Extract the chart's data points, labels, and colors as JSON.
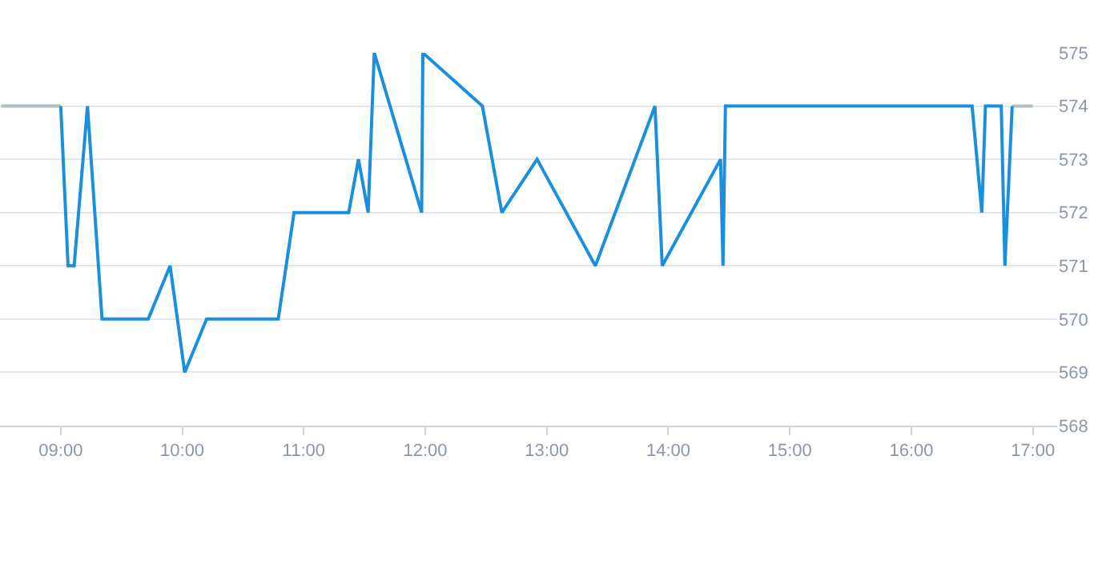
{
  "chart_data": {
    "type": "line",
    "xlim": [
      8.5,
      17.2
    ],
    "ylim": [
      568,
      575
    ],
    "xticks": [
      {
        "value": 9,
        "label": "09:00"
      },
      {
        "value": 10,
        "label": "10:00"
      },
      {
        "value": 11,
        "label": "11:00"
      },
      {
        "value": 12,
        "label": "12:00"
      },
      {
        "value": 13,
        "label": "13:00"
      },
      {
        "value": 14,
        "label": "14:00"
      },
      {
        "value": 15,
        "label": "15:00"
      },
      {
        "value": 16,
        "label": "16:00"
      },
      {
        "value": 17,
        "label": "17:00"
      }
    ],
    "yticks": [
      568,
      569,
      570,
      571,
      572,
      573,
      574,
      575
    ],
    "grid": "y",
    "marker": "none",
    "line_style": "solid",
    "series": [
      {
        "color": "#b0bec5",
        "x": [
          8.51,
          9.0
        ],
        "values": [
          574,
          574
        ]
      },
      {
        "color": "#b0bec5",
        "x": [
          16.83,
          17.0
        ],
        "values": [
          574,
          574
        ]
      },
      {
        "color": "#1a8fdc",
        "x": [
          9.0,
          9.06,
          9.11,
          9.22,
          9.34,
          9.72,
          9.9,
          10.02,
          10.2,
          10.79,
          10.92,
          11.37,
          11.45,
          11.53,
          11.58,
          11.97,
          11.98,
          12.47,
          12.63,
          12.92,
          13.4,
          13.89,
          13.95,
          14.43,
          14.45,
          14.47,
          16.5,
          16.58,
          16.61,
          16.74,
          16.77,
          16.83
        ],
        "values": [
          574,
          571,
          571,
          574,
          570,
          570,
          571,
          569,
          570,
          570,
          572,
          572,
          573,
          572,
          575,
          572,
          575,
          574,
          572,
          573,
          571,
          574,
          571,
          573,
          571,
          574,
          574,
          572,
          574,
          574,
          571,
          574
        ]
      }
    ]
  }
}
